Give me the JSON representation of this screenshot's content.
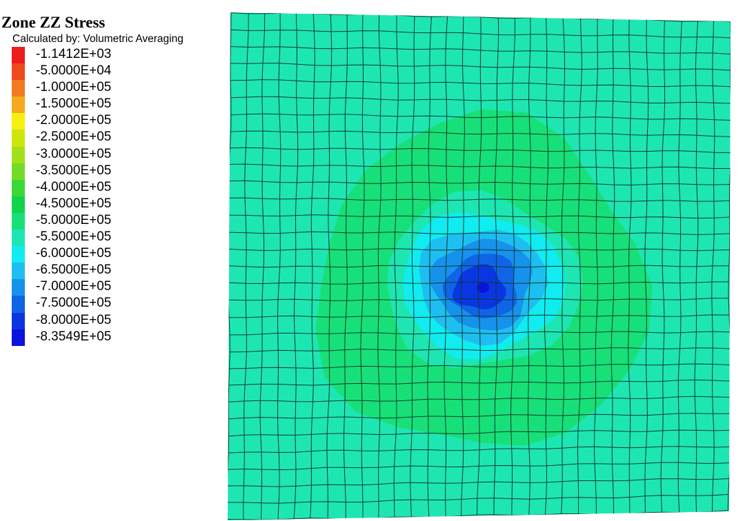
{
  "legend": {
    "title": "Zone ZZ Stress",
    "subtitle": "Calculated by: Volumetric Averaging",
    "entries": [
      {
        "label": "-1.1412E+03",
        "color": "#ee1c1c"
      },
      {
        "label": "-5.0000E+04",
        "color": "#ef4a1e"
      },
      {
        "label": "-1.0000E+05",
        "color": "#f27a20"
      },
      {
        "label": "-1.5000E+05",
        "color": "#f6a91c"
      },
      {
        "label": "-2.0000E+05",
        "color": "#f7ef0e"
      },
      {
        "label": "-2.5000E+05",
        "color": "#cde60e"
      },
      {
        "label": "-3.0000E+05",
        "color": "#a3e01a"
      },
      {
        "label": "-3.5000E+05",
        "color": "#74dc28"
      },
      {
        "label": "-4.0000E+05",
        "color": "#3cd83a"
      },
      {
        "label": "-4.5000E+05",
        "color": "#12d44a"
      },
      {
        "label": "-5.0000E+05",
        "color": "#18e078"
      },
      {
        "label": "-5.5000E+05",
        "color": "#1ee6b2"
      },
      {
        "label": "-6.0000E+05",
        "color": "#10ecf0"
      },
      {
        "label": "-6.5000E+05",
        "color": "#1ebff0"
      },
      {
        "label": "-7.0000E+05",
        "color": "#1692ec"
      },
      {
        "label": "-7.5000E+05",
        "color": "#1064e6"
      },
      {
        "label": "-8.0000E+05",
        "color": "#0a36e2"
      },
      {
        "label": "-8.3549E+05",
        "color": "#0a14dc"
      }
    ]
  },
  "plot": {
    "background_color": "#1ee6b2",
    "grid_color": "#0f3a2c",
    "contour_bands": [
      {
        "level": "-5.0000E+05",
        "color": "#18e078"
      },
      {
        "level": "-5.5000E+05",
        "color": "#1ee6b2"
      },
      {
        "level": "-6.0000E+05",
        "color": "#10ecf0"
      },
      {
        "level": "-6.5000E+05",
        "color": "#1ebff0"
      },
      {
        "level": "-7.0000E+05",
        "color": "#1692ec"
      },
      {
        "level": "-7.5000E+05",
        "color": "#1064e6"
      },
      {
        "level": "-8.0000E+05",
        "color": "#0a36e2"
      },
      {
        "level": "-8.3549E+05",
        "color": "#0a14dc"
      }
    ]
  }
}
